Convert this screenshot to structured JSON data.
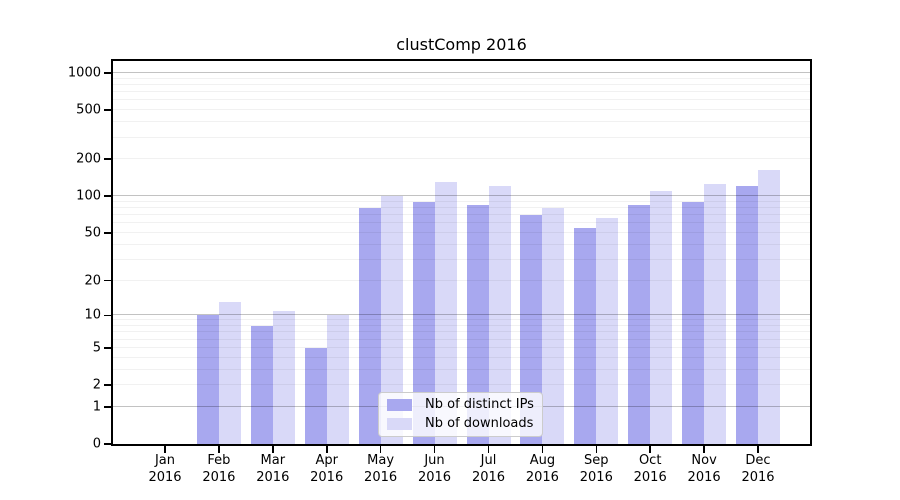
{
  "chart_data": {
    "type": "bar",
    "title": "clustComp 2016",
    "categories": [
      "Jan 2016",
      "Feb 2016",
      "Mar 2016",
      "Apr 2016",
      "May 2016",
      "Jun 2016",
      "Jul 2016",
      "Aug 2016",
      "Sep 2016",
      "Oct 2016",
      "Nov 2016",
      "Dec 2016"
    ],
    "series": [
      {
        "name": "Nb of distinct IPs",
        "color": "#a8a8ef",
        "values": [
          0,
          10,
          8,
          5,
          80,
          90,
          84,
          70,
          55,
          84,
          90,
          120
        ]
      },
      {
        "name": "Nb of downloads",
        "color": "#d9d9f8",
        "values": [
          0,
          13,
          11,
          10,
          100,
          130,
          120,
          80,
          66,
          110,
          125,
          165
        ]
      }
    ],
    "xlabel": "",
    "ylabel": "",
    "y_scale": "log1p",
    "yticks": [
      0,
      1,
      2,
      5,
      10,
      20,
      50,
      100,
      200,
      500,
      1000
    ],
    "ylim": [
      0,
      1250
    ],
    "grid": true,
    "legend_position": "lower center"
  }
}
